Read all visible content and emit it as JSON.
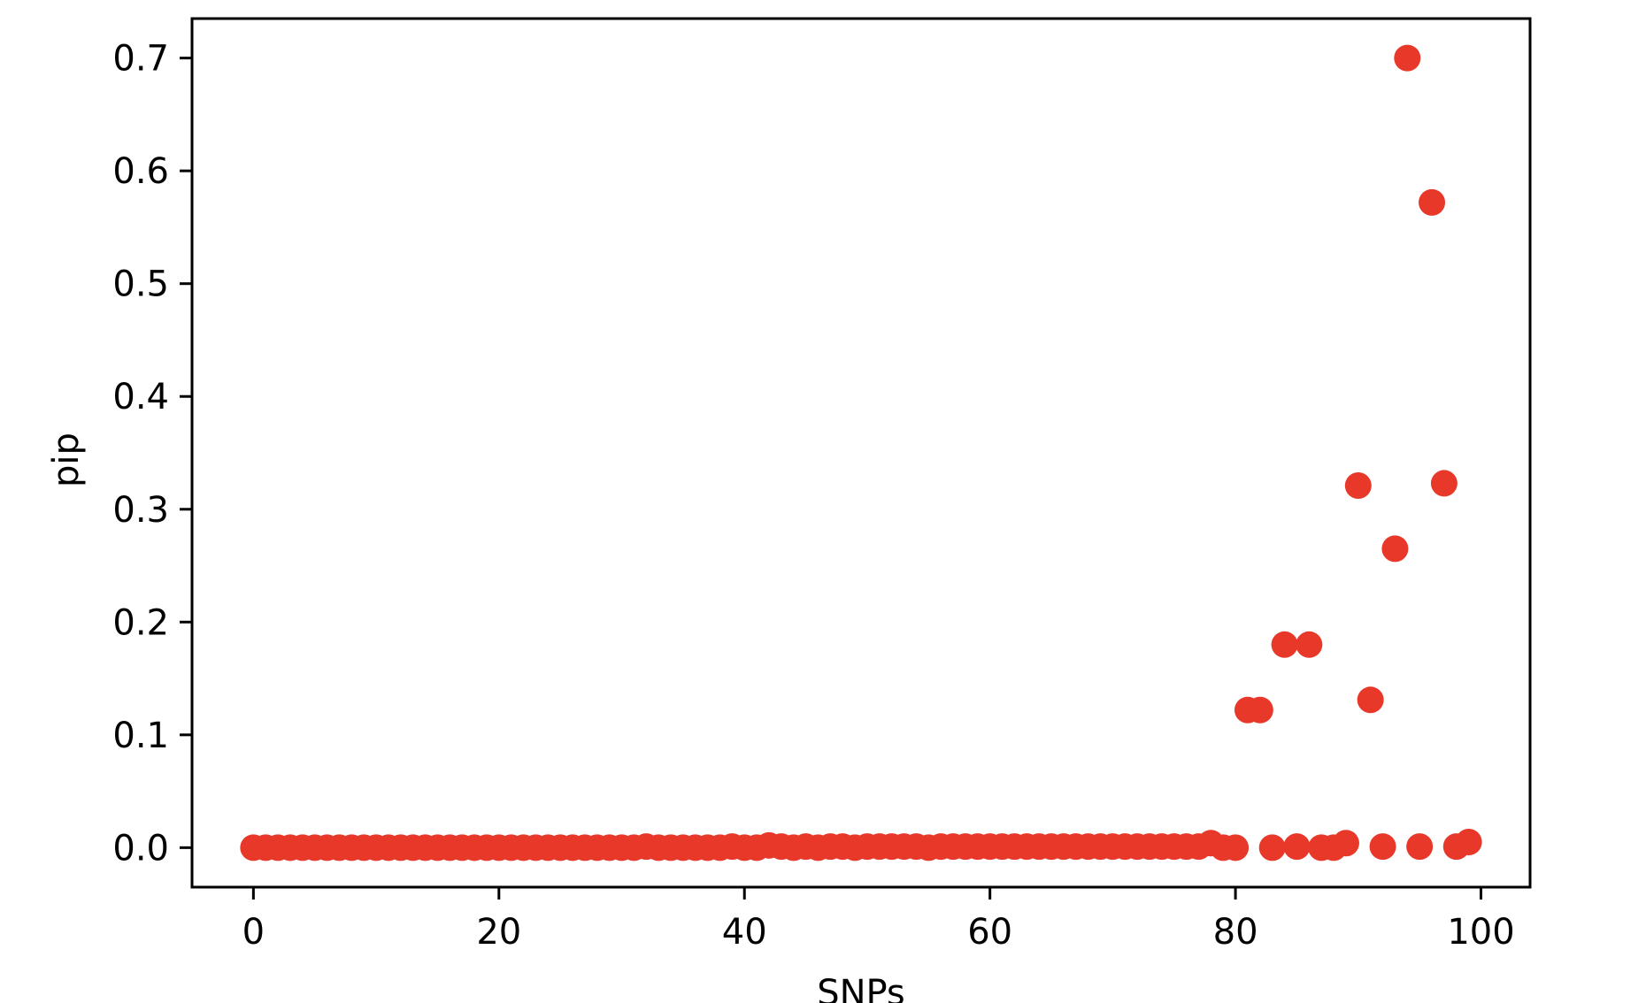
{
  "chart_data": {
    "type": "scatter",
    "title": "",
    "xlabel": "SNPs",
    "ylabel": "pip",
    "xlim": [
      -5,
      104
    ],
    "ylim": [
      -0.035,
      0.735
    ],
    "xticks": [
      0,
      20,
      40,
      60,
      80,
      100
    ],
    "xtick_labels": [
      "0",
      "20",
      "40",
      "60",
      "80",
      "100"
    ],
    "yticks": [
      0.0,
      0.1,
      0.2,
      0.3,
      0.4,
      0.5,
      0.6,
      0.7
    ],
    "ytick_labels": [
      "0.0",
      "0.1",
      "0.2",
      "0.3",
      "0.4",
      "0.5",
      "0.6",
      "0.7"
    ],
    "grid": false,
    "legend": "none",
    "marker_color": "#e8382a",
    "series": [
      {
        "x": [
          0,
          1,
          2,
          3,
          4,
          5,
          6,
          7,
          8,
          9,
          10,
          11,
          12,
          13,
          14,
          15,
          16,
          17,
          18,
          19,
          20,
          21,
          22,
          23,
          24,
          25,
          26,
          27,
          28,
          29,
          30,
          31,
          32,
          33,
          34,
          35,
          36,
          37,
          38,
          39,
          40,
          41,
          42,
          43,
          44,
          45,
          46,
          47,
          48,
          49,
          50,
          51,
          52,
          53,
          54,
          55,
          56,
          57,
          58,
          59,
          60,
          61,
          62,
          63,
          64,
          65,
          66,
          67,
          68,
          69,
          70,
          71,
          72,
          73,
          74,
          75,
          76,
          77,
          78,
          79,
          80,
          81,
          82,
          83,
          84,
          85,
          86,
          87,
          88,
          89,
          90,
          91,
          92,
          93,
          94,
          95,
          96,
          97,
          98,
          99
        ],
        "y": [
          0,
          0,
          0,
          0,
          0,
          0,
          0,
          0,
          0,
          0,
          0,
          0,
          0,
          0,
          0,
          0,
          0,
          0,
          0,
          0,
          0,
          0,
          0,
          0,
          0,
          0,
          0,
          0,
          0,
          0,
          0,
          0,
          0.001,
          0,
          0,
          0,
          0,
          0,
          0,
          0.001,
          0,
          0,
          0.002,
          0.001,
          0,
          0.001,
          0,
          0.001,
          0.001,
          0,
          0.001,
          0.001,
          0.001,
          0.001,
          0.001,
          0,
          0.001,
          0.001,
          0.001,
          0.001,
          0.001,
          0.001,
          0.001,
          0.001,
          0.001,
          0.001,
          0.001,
          0.001,
          0.001,
          0.001,
          0.001,
          0.001,
          0.001,
          0.001,
          0.001,
          0.001,
          0.001,
          0.001,
          0.004,
          0,
          0,
          0.122,
          0.122,
          0,
          0.18,
          0.001,
          0.18,
          0,
          0,
          0.004,
          0.321,
          0.131,
          0.001,
          0.265,
          0.7,
          0.001,
          0.572,
          0.323,
          0.001,
          0.005
        ]
      }
    ]
  }
}
